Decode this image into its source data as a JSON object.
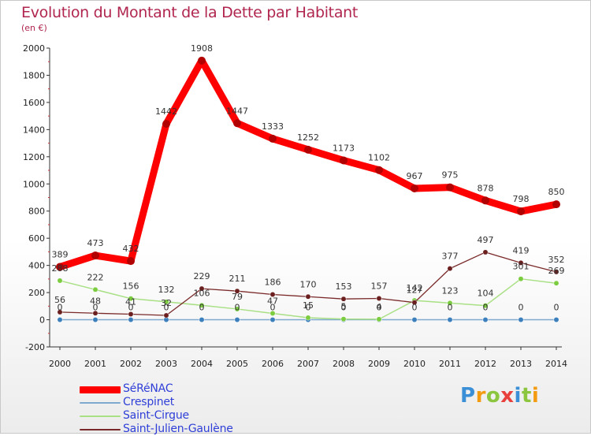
{
  "header": {
    "title": "Evolution du Montant de la Dette par Habitant",
    "unit": "(en €)"
  },
  "logo": {
    "letters": [
      "P",
      "r",
      "o",
      "x",
      "i",
      "t",
      "i"
    ],
    "colors": [
      "#3a8fd6",
      "#f39c12",
      "#8cc63f",
      "#e8413d",
      "#3a8fd6",
      "#8cc63f",
      "#f39c12"
    ]
  },
  "chart_data": {
    "type": "line",
    "title": "Evolution du Montant de la Dette par Habitant",
    "ylabel": "(en €)",
    "xlabel": "",
    "x": [
      "2000",
      "2001",
      "2002",
      "2003",
      "2004",
      "2005",
      "2006",
      "2007",
      "2008",
      "2009",
      "2010",
      "2011",
      "2012",
      "2013",
      "2014"
    ],
    "ylim": [
      -200,
      2000
    ],
    "yticks": [
      "-200",
      "0",
      "200",
      "400",
      "600",
      "800",
      "1000",
      "1200",
      "1400",
      "1600",
      "1800",
      "2000"
    ],
    "grid": false,
    "legend_position": "bottom-left",
    "series": [
      {
        "name": "SéRéNAC",
        "color": "#ff0000",
        "marker": "#b20000",
        "values": [
          389,
          473,
          432,
          1442,
          1908,
          1447,
          1333,
          1252,
          1173,
          1102,
          967,
          975,
          878,
          798,
          850
        ],
        "labels": [
          "389",
          "473",
          "432",
          "1442",
          "1908",
          "1447",
          "1333",
          "1252",
          "1173",
          "1102",
          "967",
          "975",
          "878",
          "798",
          "850"
        ]
      },
      {
        "name": "Crespinet",
        "color": "#7fa9cf",
        "marker": "#3c7fbd",
        "values": [
          0,
          0,
          0,
          0,
          0,
          0,
          0,
          0,
          0,
          0,
          0,
          0,
          0,
          0,
          0
        ],
        "labels": [
          "0",
          "0",
          "0",
          "0",
          "0",
          "0",
          "0",
          "0",
          "0",
          "0",
          "0",
          "0",
          "0",
          "0",
          "0"
        ]
      },
      {
        "name": "Saint-Cirgue",
        "color": "#a9e085",
        "marker": "#7ccc3f",
        "values": [
          288,
          222,
          156,
          132,
          106,
          79,
          47,
          15,
          5,
          4,
          142,
          123,
          104,
          301,
          269
        ],
        "labels": [
          "288",
          "222",
          "156",
          "132",
          "106",
          "79",
          "47",
          "15",
          "5",
          "4",
          "142",
          "123",
          "104",
          "301",
          "269"
        ]
      },
      {
        "name": "Saint-Julien-Gaulène",
        "color": "#7a2a2a",
        "marker": "#6b1f1f",
        "values": [
          56,
          48,
          41,
          32,
          229,
          211,
          186,
          170,
          153,
          157,
          127,
          377,
          497,
          419,
          352
        ],
        "labels": [
          "56",
          "48",
          "41",
          "32",
          "229",
          "211",
          "186",
          "170",
          "153",
          "157",
          "127",
          "377",
          "497",
          "419",
          "352"
        ]
      }
    ]
  }
}
